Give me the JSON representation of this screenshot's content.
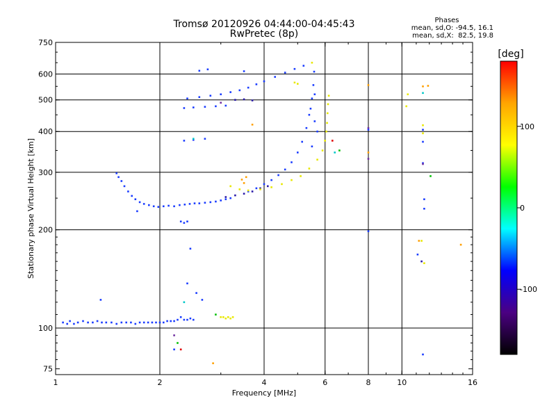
{
  "chart_data": {
    "type": "scatter",
    "title": "Tromsø 20120926 04:44:00-04:45:43",
    "subtitle": "RwPretec (8p)",
    "phases_box": {
      "title": "Phases",
      "line_o": "mean, sd,O: -94.5, 16.1",
      "line_x": "mean, sd,X:  82.5, 19.8"
    },
    "xlabel": "Frequency [MHz]",
    "ylabel": "Stationary phase Virtual Height [km]",
    "xscale": "log",
    "yscale": "log",
    "xlim": [
      1,
      16
    ],
    "ylim": [
      72,
      750
    ],
    "xticks": [
      1,
      2,
      4,
      6,
      8,
      10,
      16
    ],
    "xtick_labels": [
      "1",
      "2",
      "4",
      "6",
      "8",
      "10",
      "16"
    ],
    "yticks": [
      75,
      100,
      200,
      300,
      400,
      500,
      600,
      750
    ],
    "ytick_labels": [
      "75",
      "100",
      "200",
      "300",
      "400",
      "500",
      "600",
      "750"
    ],
    "xgrid": [
      2,
      4,
      6,
      8,
      10
    ],
    "ygrid": [
      100,
      200,
      300,
      400,
      500,
      600
    ],
    "colorbar": {
      "label": "[deg]",
      "range": [
        -180,
        180
      ],
      "ticks": [
        100,
        0,
        -100
      ],
      "tick_labels": [
        "100",
        "0",
        "-100"
      ],
      "colors": [
        "#ff0000",
        "#ffa500",
        "#ffff00",
        "#00ff00",
        "#00ffff",
        "#0000ff",
        "#4b0082",
        "#000000"
      ]
    },
    "series": [
      {
        "color": "#1a3cff",
        "points": [
          [
            1.05,
            104
          ],
          [
            1.08,
            103
          ],
          [
            1.1,
            105
          ],
          [
            1.13,
            103
          ],
          [
            1.16,
            104
          ],
          [
            1.2,
            105
          ],
          [
            1.24,
            104
          ],
          [
            1.28,
            104
          ],
          [
            1.32,
            105
          ],
          [
            1.36,
            104
          ],
          [
            1.4,
            104
          ],
          [
            1.45,
            104
          ],
          [
            1.5,
            103
          ],
          [
            1.55,
            104
          ],
          [
            1.6,
            104
          ],
          [
            1.65,
            104
          ],
          [
            1.7,
            103
          ],
          [
            1.75,
            104
          ],
          [
            1.8,
            104
          ],
          [
            1.85,
            104
          ],
          [
            1.9,
            104
          ],
          [
            1.95,
            104
          ],
          [
            2.0,
            104
          ],
          [
            2.05,
            104
          ],
          [
            2.1,
            105
          ],
          [
            2.15,
            105
          ],
          [
            2.2,
            105
          ],
          [
            2.25,
            106
          ],
          [
            2.3,
            108
          ],
          [
            2.35,
            106
          ],
          [
            2.4,
            106
          ],
          [
            2.45,
            107
          ],
          [
            2.5,
            106
          ],
          [
            1.5,
            298
          ],
          [
            1.52,
            290
          ],
          [
            1.55,
            282
          ],
          [
            1.58,
            272
          ],
          [
            1.62,
            262
          ],
          [
            1.66,
            254
          ],
          [
            1.7,
            248
          ],
          [
            1.75,
            243
          ],
          [
            1.8,
            240
          ],
          [
            1.86,
            238
          ],
          [
            1.92,
            236
          ],
          [
            1.98,
            235
          ],
          [
            2.05,
            236
          ],
          [
            2.12,
            237
          ],
          [
            2.2,
            236
          ],
          [
            2.28,
            238
          ],
          [
            2.36,
            239
          ],
          [
            2.44,
            240
          ],
          [
            2.52,
            241
          ],
          [
            2.6,
            241
          ],
          [
            2.7,
            242
          ],
          [
            2.8,
            243
          ],
          [
            2.9,
            244
          ],
          [
            3.0,
            246
          ],
          [
            3.1,
            248
          ],
          [
            3.2,
            250
          ],
          [
            1.72,
            228
          ],
          [
            2.3,
            212
          ],
          [
            2.35,
            210
          ],
          [
            2.4,
            212
          ],
          [
            3.6,
            262
          ],
          [
            3.8,
            268
          ],
          [
            4.0,
            276
          ],
          [
            4.2,
            284
          ],
          [
            4.4,
            294
          ],
          [
            4.6,
            306
          ],
          [
            4.8,
            322
          ],
          [
            5.0,
            345
          ],
          [
            5.15,
            372
          ],
          [
            5.3,
            410
          ],
          [
            5.4,
            450
          ],
          [
            5.5,
            505
          ],
          [
            5.55,
            555
          ],
          [
            5.58,
            610
          ],
          [
            2.4,
            505
          ],
          [
            2.6,
            510
          ],
          [
            2.8,
            515
          ],
          [
            3.0,
            520
          ],
          [
            3.2,
            528
          ],
          [
            3.4,
            535
          ],
          [
            3.6,
            545
          ],
          [
            3.8,
            558
          ],
          [
            4.0,
            570
          ],
          [
            4.3,
            588
          ],
          [
            4.6,
            606
          ],
          [
            4.9,
            622
          ],
          [
            5.2,
            636
          ],
          [
            2.35,
            472
          ],
          [
            2.5,
            474
          ],
          [
            2.7,
            476
          ],
          [
            2.9,
            478
          ],
          [
            3.1,
            480
          ],
          [
            2.35,
            375
          ],
          [
            2.5,
            377
          ],
          [
            2.7,
            380
          ],
          [
            2.6,
            614
          ],
          [
            2.75,
            620
          ],
          [
            3.5,
            612
          ],
          [
            5.45,
            470
          ],
          [
            5.6,
            430
          ],
          [
            5.7,
            400
          ],
          [
            5.5,
            360
          ],
          [
            5.6,
            520
          ],
          [
            1.35,
            122
          ],
          [
            2.2,
            86
          ],
          [
            2.45,
            175
          ],
          [
            2.55,
            128
          ],
          [
            2.65,
            122
          ],
          [
            2.4,
            137
          ],
          [
            8.0,
            198
          ],
          [
            8.0,
            405
          ],
          [
            11.5,
            83
          ],
          [
            11.5,
            405
          ],
          [
            11.5,
            372
          ],
          [
            11.6,
            248
          ],
          [
            11.6,
            232
          ],
          [
            11.1,
            168
          ],
          [
            11.5,
            320
          ]
        ]
      },
      {
        "color": "#2a1aa8",
        "points": [
          [
            3.3,
            500
          ],
          [
            3.5,
            502
          ],
          [
            3.7,
            498
          ],
          [
            3.1,
            252
          ],
          [
            3.3,
            255
          ],
          [
            3.5,
            258
          ],
          [
            3.7,
            262
          ],
          [
            3.9,
            268
          ],
          [
            4.1,
            272
          ],
          [
            11.4,
            160
          ]
        ]
      },
      {
        "color": "#e8e800",
        "points": [
          [
            3.2,
            272
          ],
          [
            3.4,
            266
          ],
          [
            3.6,
            264
          ],
          [
            3.9,
            266
          ],
          [
            4.2,
            270
          ],
          [
            4.5,
            276
          ],
          [
            4.8,
            284
          ],
          [
            5.1,
            292
          ],
          [
            5.4,
            308
          ],
          [
            5.7,
            328
          ],
          [
            5.9,
            350
          ],
          [
            6.0,
            375
          ],
          [
            6.05,
            400
          ],
          [
            6.08,
            425
          ],
          [
            6.1,
            455
          ],
          [
            6.12,
            485
          ],
          [
            6.15,
            515
          ],
          [
            3.0,
            108
          ],
          [
            3.05,
            108
          ],
          [
            3.1,
            107
          ],
          [
            3.15,
            108
          ],
          [
            3.2,
            107
          ],
          [
            3.25,
            108
          ],
          [
            5.5,
            650
          ],
          [
            4.9,
            565
          ],
          [
            5.0,
            560
          ],
          [
            10.4,
            520
          ],
          [
            10.3,
            478
          ],
          [
            11.5,
            418
          ],
          [
            11.5,
            395
          ],
          [
            11.6,
            158
          ],
          [
            11.4,
            185
          ]
        ]
      },
      {
        "color": "#ffa000",
        "points": [
          [
            2.85,
            78
          ],
          [
            3.45,
            285
          ],
          [
            3.5,
            278
          ],
          [
            3.55,
            290
          ],
          [
            8.0,
            555
          ],
          [
            11.5,
            550
          ],
          [
            11.9,
            552
          ],
          [
            11.2,
            185
          ],
          [
            14.8,
            180
          ],
          [
            8.0,
            345
          ],
          [
            3.7,
            420
          ]
        ]
      },
      {
        "color": "#00c000",
        "points": [
          [
            2.25,
            90
          ],
          [
            2.9,
            110
          ],
          [
            6.6,
            350
          ],
          [
            12.1,
            292
          ]
        ]
      },
      {
        "color": "#00c8c8",
        "points": [
          [
            6.4,
            345
          ],
          [
            2.35,
            120
          ],
          [
            2.5,
            380
          ],
          [
            11.5,
            525
          ]
        ]
      },
      {
        "color": "#e00000",
        "points": [
          [
            6.3,
            375
          ],
          [
            2.3,
            86
          ]
        ]
      },
      {
        "color": "#7030a0",
        "points": [
          [
            2.2,
            95
          ],
          [
            3.0,
            490
          ],
          [
            11.5,
            318
          ],
          [
            8.0,
            410
          ],
          [
            8.0,
            330
          ]
        ]
      }
    ]
  }
}
